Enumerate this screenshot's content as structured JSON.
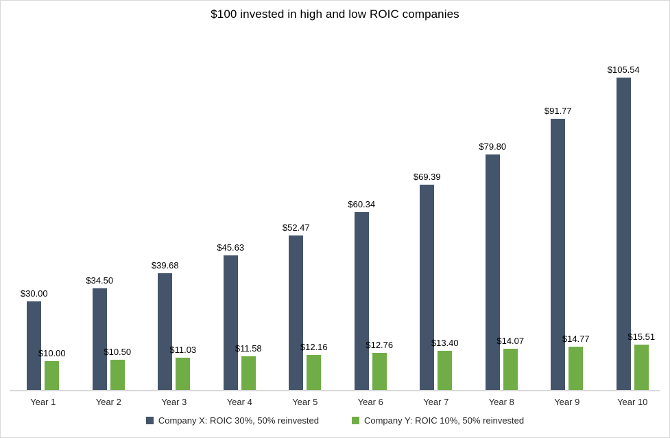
{
  "window": {
    "background_color": "#ffffff",
    "border_color": "#d9d9d9"
  },
  "chart_data": {
    "type": "bar",
    "title": "$100 invested in high and low ROIC companies",
    "categories": [
      "Year 1",
      "Year 2",
      "Year 3",
      "Year 4",
      "Year 5",
      "Year 6",
      "Year 7",
      "Year 8",
      "Year 9",
      "Year 10"
    ],
    "series": [
      {
        "name": "Company X: ROIC 30%, 50% reinvested",
        "color": "#44546A",
        "values": [
          30.0,
          34.5,
          39.68,
          45.63,
          52.47,
          60.34,
          69.39,
          79.8,
          91.77,
          105.54
        ],
        "labels": [
          "$30.00",
          "$34.50",
          "$39.68",
          "$45.63",
          "$52.47",
          "$60.34",
          "$69.39",
          "$79.80",
          "$91.77",
          "$105.54"
        ]
      },
      {
        "name": "Company Y: ROIC 10%, 50% reinvested",
        "color": "#70AD47",
        "values": [
          10.0,
          10.5,
          11.03,
          11.58,
          12.16,
          12.76,
          13.4,
          14.07,
          14.77,
          15.51
        ],
        "labels": [
          "$10.00",
          "$10.50",
          "$11.03",
          "$11.58",
          "$12.16",
          "$12.76",
          "$13.40",
          "$14.07",
          "$14.77",
          "$15.51"
        ]
      }
    ],
    "xlabel": "",
    "ylabel": "",
    "ylim": [
      0,
      120
    ],
    "grid": false,
    "y_axis_labels_shown": false,
    "data_labels_shown": true,
    "legend_position": "bottom",
    "axis_line_color": "#d9d9d9",
    "label_text_color": "#000000",
    "axis_text_color": "#262626"
  }
}
